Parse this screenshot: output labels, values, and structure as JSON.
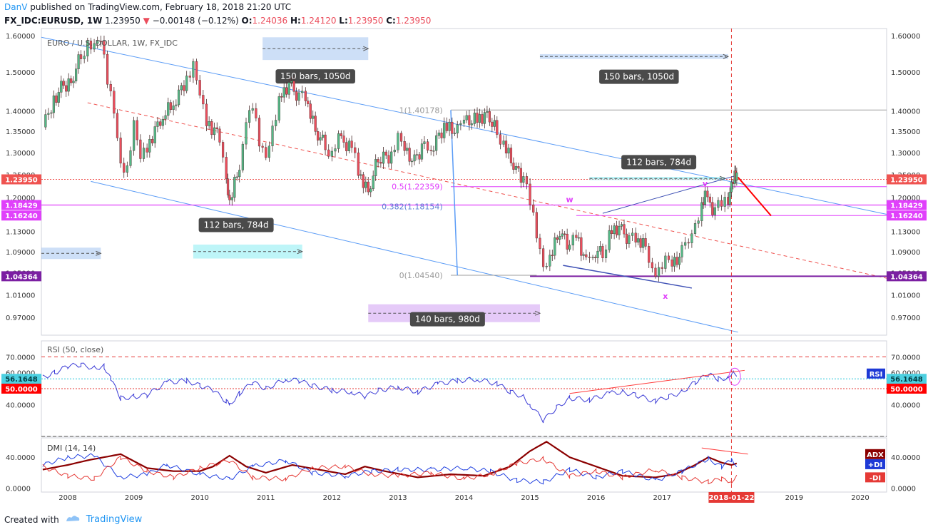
{
  "header": {
    "author": "DanV",
    "published": "published on TradingView.com, February 18, 2018 21:20 UTC",
    "symbol": "FX_IDC:EURUSD, 1W",
    "last": "1.23950",
    "change": "−0.00148 (−0.12%)",
    "o_label": "O:",
    "o": "1.24036",
    "h_label": "H:",
    "h": "1.24120",
    "l_label": "L:",
    "l": "1.23950",
    "c_label": "C:",
    "c": "1.23950"
  },
  "footer": {
    "created_with": "Created with",
    "brand": "TradingView"
  },
  "colors": {
    "bull": "#53b987",
    "bear": "#eb4d5c",
    "channel": "#5b9cf6",
    "magenta": "#e040fb",
    "purple": "#9c27b0",
    "rsi": "#3b3bd6",
    "adx": "#8b0000",
    "plus_di": "#2040e0",
    "minus_di": "#e53935",
    "last_price": "#ef5350"
  },
  "chart_data": [
    {
      "type": "candlestick",
      "title": "EURO / U.S. DOLLAR, 1W, FX_IDC",
      "x_range": [
        2007.6,
        2020.4
      ],
      "ylim": [
        0.94,
        1.62
      ],
      "scale": "log",
      "y_ticks": [
        "1.60000",
        "1.50000",
        "1.40000",
        "1.35000",
        "1.30000",
        "1.25000",
        "1.20000",
        "1.13000",
        "1.09000",
        "1.05000",
        "1.01000",
        "0.97000"
      ],
      "y_tick_values": [
        1.6,
        1.5,
        1.4,
        1.35,
        1.3,
        1.25,
        1.2,
        1.13,
        1.09,
        1.05,
        1.01,
        0.97
      ],
      "x_ticks": [
        "2008",
        "2009",
        "2010",
        "2011",
        "2012",
        "2013",
        "2014",
        "2015",
        "2016",
        "2017",
        "2019",
        "2020"
      ],
      "x_tick_values": [
        2008,
        2009,
        2010,
        2011,
        2012,
        2013,
        2014,
        2015,
        2016,
        2017,
        2019,
        2020
      ],
      "x_current_label": "2018-01-22",
      "x_current": 2018.05,
      "closes": [
        [
          2007.62,
          1.36
        ],
        [
          2007.75,
          1.41
        ],
        [
          2007.9,
          1.46
        ],
        [
          2008.05,
          1.47
        ],
        [
          2008.2,
          1.55
        ],
        [
          2008.3,
          1.57
        ],
        [
          2008.4,
          1.56
        ],
        [
          2008.5,
          1.58
        ],
        [
          2008.6,
          1.48
        ],
        [
          2008.7,
          1.41
        ],
        [
          2008.8,
          1.28
        ],
        [
          2008.9,
          1.26
        ],
        [
          2009.0,
          1.36
        ],
        [
          2009.1,
          1.28
        ],
        [
          2009.2,
          1.31
        ],
        [
          2009.4,
          1.38
        ],
        [
          2009.6,
          1.42
        ],
        [
          2009.8,
          1.48
        ],
        [
          2009.9,
          1.51
        ],
        [
          2010.0,
          1.43
        ],
        [
          2010.1,
          1.37
        ],
        [
          2010.3,
          1.34
        ],
        [
          2010.4,
          1.25
        ],
        [
          2010.45,
          1.19
        ],
        [
          2010.6,
          1.27
        ],
        [
          2010.7,
          1.36
        ],
        [
          2010.8,
          1.41
        ],
        [
          2010.9,
          1.33
        ],
        [
          2011.0,
          1.3
        ],
        [
          2011.1,
          1.36
        ],
        [
          2011.2,
          1.42
        ],
        [
          2011.35,
          1.47
        ],
        [
          2011.5,
          1.43
        ],
        [
          2011.6,
          1.44
        ],
        [
          2011.75,
          1.35
        ],
        [
          2011.9,
          1.32
        ],
        [
          2012.0,
          1.29
        ],
        [
          2012.1,
          1.33
        ],
        [
          2012.3,
          1.31
        ],
        [
          2012.4,
          1.26
        ],
        [
          2012.55,
          1.21
        ],
        [
          2012.7,
          1.29
        ],
        [
          2012.9,
          1.29
        ],
        [
          2013.0,
          1.33
        ],
        [
          2013.1,
          1.3
        ],
        [
          2013.25,
          1.28
        ],
        [
          2013.4,
          1.32
        ],
        [
          2013.5,
          1.31
        ],
        [
          2013.7,
          1.36
        ],
        [
          2013.9,
          1.35
        ],
        [
          2014.0,
          1.37
        ],
        [
          2014.2,
          1.38
        ],
        [
          2014.35,
          1.39
        ],
        [
          2014.5,
          1.35
        ],
        [
          2014.6,
          1.32
        ],
        [
          2014.75,
          1.27
        ],
        [
          2014.9,
          1.24
        ],
        [
          2015.0,
          1.19
        ],
        [
          2015.1,
          1.13
        ],
        [
          2015.2,
          1.07
        ],
        [
          2015.3,
          1.08
        ],
        [
          2015.45,
          1.13
        ],
        [
          2015.6,
          1.1
        ],
        [
          2015.7,
          1.12
        ],
        [
          2015.85,
          1.07
        ],
        [
          2015.95,
          1.09
        ],
        [
          2016.1,
          1.09
        ],
        [
          2016.2,
          1.12
        ],
        [
          2016.35,
          1.14
        ],
        [
          2016.5,
          1.11
        ],
        [
          2016.6,
          1.12
        ],
        [
          2016.75,
          1.1
        ],
        [
          2016.85,
          1.06
        ],
        [
          2016.95,
          1.05
        ],
        [
          2017.05,
          1.07
        ],
        [
          2017.15,
          1.06
        ],
        [
          2017.3,
          1.09
        ],
        [
          2017.4,
          1.12
        ],
        [
          2017.5,
          1.15
        ],
        [
          2017.6,
          1.18
        ],
        [
          2017.65,
          1.2
        ],
        [
          2017.8,
          1.17
        ],
        [
          2017.9,
          1.19
        ],
        [
          2018.0,
          1.2
        ],
        [
          2018.05,
          1.24
        ],
        [
          2018.1,
          1.25
        ],
        [
          2018.13,
          1.2395
        ]
      ],
      "price_labels": [
        {
          "value": 1.2395,
          "text": "1.23950",
          "color": "#ef5350"
        },
        {
          "value": 1.18429,
          "text": "1.18429",
          "color": "#e040fb"
        },
        {
          "value": 1.1624,
          "text": "1.16240",
          "color": "#e040fb"
        },
        {
          "value": 1.04364,
          "text": "1.04364",
          "color": "#7b1fa2"
        }
      ],
      "fib_labels": [
        {
          "value": 1.40178,
          "text": "1(1.40178)",
          "color": "#999999"
        },
        {
          "value": 1.22359,
          "text": "0.5(1.22359)",
          "color": "#e040fb"
        },
        {
          "value": 1.18154,
          "text": "0.382(1.18154)",
          "color": "#5b7fd6"
        },
        {
          "value": 1.0454,
          "text": "0(1.04540)",
          "color": "#999999"
        }
      ],
      "annotations": [
        {
          "text": "150 bars, 1050d"
        },
        {
          "text": "150 bars, 1050d"
        },
        {
          "text": "112 bars, 784d"
        },
        {
          "text": "112 bars, 784d"
        },
        {
          "text": "140 bars, 980d"
        },
        {
          "text": "w",
          "color": "#e040fb"
        },
        {
          "text": "v",
          "color": "#e040fb"
        },
        {
          "text": "x",
          "color": "#e040fb"
        }
      ]
    },
    {
      "type": "line",
      "title": "RSI (50, close)",
      "ylim": [
        20,
        80
      ],
      "y_ticks": [
        "70.0000",
        "60.0000",
        "40.0000"
      ],
      "y_tick_values": [
        70,
        60,
        40
      ],
      "labels": [
        {
          "value": 56.1648,
          "text": "56.1648",
          "color": "#4dd0e1"
        },
        {
          "value": 50,
          "text": "50.0000",
          "color": "#ff0000"
        }
      ],
      "badge": "RSI",
      "series": [
        {
          "values": [
            [
              2007.62,
              57
            ],
            [
              2007.8,
              60
            ],
            [
              2008.0,
              64
            ],
            [
              2008.2,
              65
            ],
            [
              2008.4,
              63
            ],
            [
              2008.55,
              64
            ],
            [
              2008.65,
              56
            ],
            [
              2008.8,
              44
            ],
            [
              2009.0,
              45
            ],
            [
              2009.2,
              46
            ],
            [
              2009.5,
              54
            ],
            [
              2009.8,
              55
            ],
            [
              2010.0,
              52
            ],
            [
              2010.2,
              49
            ],
            [
              2010.4,
              42
            ],
            [
              2010.45,
              40
            ],
            [
              2010.6,
              47
            ],
            [
              2010.8,
              54
            ],
            [
              2011.0,
              50
            ],
            [
              2011.3,
              56
            ],
            [
              2011.5,
              55
            ],
            [
              2011.7,
              52
            ],
            [
              2012.0,
              49
            ],
            [
              2012.3,
              48
            ],
            [
              2012.5,
              45
            ],
            [
              2012.7,
              49
            ],
            [
              2013.0,
              51
            ],
            [
              2013.3,
              48
            ],
            [
              2013.6,
              53
            ],
            [
              2013.9,
              55
            ],
            [
              2014.2,
              56
            ],
            [
              2014.5,
              53
            ],
            [
              2014.7,
              48
            ],
            [
              2014.9,
              45
            ],
            [
              2015.0,
              40
            ],
            [
              2015.2,
              30
            ],
            [
              2015.4,
              38
            ],
            [
              2015.6,
              44
            ],
            [
              2015.9,
              43
            ],
            [
              2016.2,
              47
            ],
            [
              2016.4,
              48
            ],
            [
              2016.6,
              46
            ],
            [
              2016.9,
              42
            ],
            [
              2017.1,
              45
            ],
            [
              2017.3,
              48
            ],
            [
              2017.5,
              54
            ],
            [
              2017.7,
              59
            ],
            [
              2017.85,
              56
            ],
            [
              2018.0,
              57
            ],
            [
              2018.08,
              62
            ],
            [
              2018.13,
              56.1648
            ]
          ]
        }
      ]
    },
    {
      "type": "line",
      "title": "DMI (14, 14)",
      "ylim": [
        -5,
        65
      ],
      "y_ticks": [
        "40.0000",
        "0.0000"
      ],
      "y_tick_values": [
        40,
        0
      ],
      "badges": [
        "ADX",
        "+DI",
        "-DI"
      ],
      "series": [
        {
          "name": "ADX",
          "values": [
            [
              2007.62,
              24
            ],
            [
              2008.0,
              30
            ],
            [
              2008.3,
              36
            ],
            [
              2008.8,
              44
            ],
            [
              2009.2,
              26
            ],
            [
              2009.6,
              22
            ],
            [
              2010.0,
              22
            ],
            [
              2010.2,
              28
            ],
            [
              2010.45,
              42
            ],
            [
              2010.7,
              28
            ],
            [
              2011.0,
              20
            ],
            [
              2011.4,
              30
            ],
            [
              2011.8,
              24
            ],
            [
              2012.2,
              18
            ],
            [
              2012.5,
              28
            ],
            [
              2012.8,
              22
            ],
            [
              2013.3,
              14
            ],
            [
              2013.8,
              18
            ],
            [
              2014.3,
              16
            ],
            [
              2014.7,
              28
            ],
            [
              2015.0,
              48
            ],
            [
              2015.25,
              60
            ],
            [
              2015.6,
              40
            ],
            [
              2016.0,
              28
            ],
            [
              2016.4,
              16
            ],
            [
              2016.9,
              14
            ],
            [
              2017.2,
              18
            ],
            [
              2017.5,
              30
            ],
            [
              2017.7,
              40
            ],
            [
              2017.9,
              33
            ],
            [
              2018.05,
              30
            ],
            [
              2018.13,
              32
            ]
          ]
        },
        {
          "name": "+DI",
          "values": [
            [
              2007.62,
              30
            ],
            [
              2008.0,
              40
            ],
            [
              2008.4,
              42
            ],
            [
              2008.8,
              14
            ],
            [
              2009.2,
              18
            ],
            [
              2009.5,
              30
            ],
            [
              2010.0,
              18
            ],
            [
              2010.45,
              12
            ],
            [
              2010.8,
              28
            ],
            [
              2011.3,
              36
            ],
            [
              2011.7,
              20
            ],
            [
              2012.2,
              16
            ],
            [
              2012.6,
              22
            ],
            [
              2013.0,
              24
            ],
            [
              2013.5,
              24
            ],
            [
              2014.0,
              26
            ],
            [
              2014.4,
              22
            ],
            [
              2014.8,
              10
            ],
            [
              2015.2,
              8
            ],
            [
              2015.6,
              24
            ],
            [
              2016.0,
              14
            ],
            [
              2016.4,
              22
            ],
            [
              2016.9,
              10
            ],
            [
              2017.3,
              22
            ],
            [
              2017.7,
              38
            ],
            [
              2017.9,
              28
            ],
            [
              2018.05,
              36
            ],
            [
              2018.13,
              30
            ]
          ]
        },
        {
          "name": "-DI",
          "values": [
            [
              2007.62,
              28
            ],
            [
              2008.0,
              16
            ],
            [
              2008.4,
              12
            ],
            [
              2008.8,
              40
            ],
            [
              2009.2,
              22
            ],
            [
              2009.6,
              14
            ],
            [
              2010.0,
              26
            ],
            [
              2010.45,
              36
            ],
            [
              2010.8,
              14
            ],
            [
              2011.3,
              12
            ],
            [
              2011.7,
              26
            ],
            [
              2012.2,
              28
            ],
            [
              2012.6,
              18
            ],
            [
              2013.0,
              16
            ],
            [
              2013.5,
              20
            ],
            [
              2014.0,
              12
            ],
            [
              2014.4,
              18
            ],
            [
              2014.8,
              32
            ],
            [
              2015.2,
              38
            ],
            [
              2015.6,
              16
            ],
            [
              2016.0,
              22
            ],
            [
              2016.4,
              14
            ],
            [
              2016.9,
              24
            ],
            [
              2017.3,
              14
            ],
            [
              2017.7,
              8
            ],
            [
              2017.9,
              12
            ],
            [
              2018.05,
              9
            ],
            [
              2018.13,
              14
            ]
          ]
        }
      ]
    }
  ]
}
